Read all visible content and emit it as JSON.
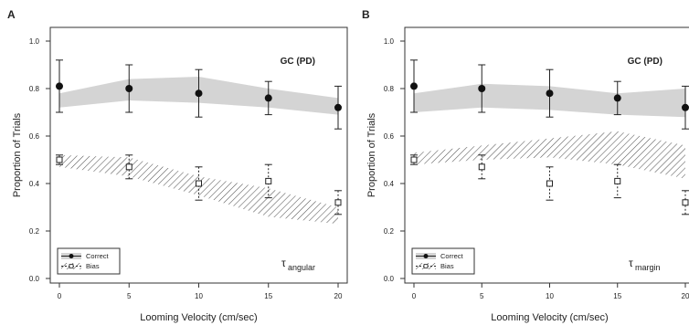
{
  "chart_data": [
    {
      "panel_letter": "A",
      "type": "scatter",
      "annotation": "GC (PD)",
      "tau_symbol": "τ",
      "tau_subscript": "angular",
      "xlabel": "Looming Velocity (cm/sec)",
      "ylabel": "Proportion of Trials",
      "x": [
        0,
        5,
        10,
        15,
        20
      ],
      "xticks": [
        "0",
        "5",
        "10",
        "15",
        "20"
      ],
      "xlim": [
        -1,
        20
      ],
      "yticks": [
        "0.0",
        "0.2",
        "0.4",
        "0.6",
        "0.8",
        "1.0"
      ],
      "ylim": [
        -0.04,
        1.08
      ],
      "legend": {
        "position": "bottom-left",
        "entries": [
          "Correct",
          "Bias"
        ]
      },
      "series": [
        {
          "name": "Correct",
          "marker": "filled-circle",
          "values": [
            0.81,
            0.8,
            0.78,
            0.76,
            0.72
          ],
          "err_low": [
            0.7,
            0.7,
            0.68,
            0.69,
            0.63
          ],
          "err_high": [
            0.92,
            0.9,
            0.88,
            0.83,
            0.81
          ],
          "model_band": {
            "lower": [
              0.72,
              0.75,
              0.74,
              0.72,
              0.69
            ],
            "upper": [
              0.78,
              0.84,
              0.85,
              0.8,
              0.76
            ]
          }
        },
        {
          "name": "Bias",
          "marker": "open-square",
          "values": [
            0.5,
            0.47,
            0.4,
            0.41,
            0.32
          ],
          "err_low": [
            0.48,
            0.42,
            0.33,
            0.34,
            0.27
          ],
          "err_high": [
            0.52,
            0.52,
            0.47,
            0.48,
            0.37
          ],
          "model_band": {
            "lower": [
              0.47,
              0.43,
              0.35,
              0.26,
              0.23
            ],
            "upper": [
              0.52,
              0.51,
              0.43,
              0.38,
              0.3
            ]
          }
        }
      ]
    },
    {
      "panel_letter": "B",
      "type": "scatter",
      "annotation": "GC (PD)",
      "tau_symbol": "τ",
      "tau_subscript": "margin",
      "xlabel": "Looming Velocity (cm/sec)",
      "ylabel": "Proportion of Trials",
      "x": [
        0,
        5,
        10,
        15,
        20
      ],
      "xticks": [
        "0",
        "5",
        "10",
        "15",
        "20"
      ],
      "xlim": [
        -1,
        20
      ],
      "yticks": [
        "0.0",
        "0.2",
        "0.4",
        "0.6",
        "0.8",
        "1.0"
      ],
      "ylim": [
        -0.04,
        1.08
      ],
      "legend": {
        "position": "bottom-left",
        "entries": [
          "Correct",
          "Bias"
        ]
      },
      "series": [
        {
          "name": "Correct",
          "marker": "filled-circle",
          "values": [
            0.81,
            0.8,
            0.78,
            0.76,
            0.72
          ],
          "err_low": [
            0.7,
            0.7,
            0.68,
            0.69,
            0.63
          ],
          "err_high": [
            0.92,
            0.9,
            0.88,
            0.83,
            0.81
          ],
          "model_band": {
            "lower": [
              0.7,
              0.72,
              0.71,
              0.69,
              0.68
            ],
            "upper": [
              0.78,
              0.82,
              0.81,
              0.78,
              0.8
            ]
          }
        },
        {
          "name": "Bias",
          "marker": "open-square",
          "values": [
            0.5,
            0.47,
            0.4,
            0.41,
            0.32
          ],
          "err_low": [
            0.48,
            0.42,
            0.33,
            0.34,
            0.27
          ],
          "err_high": [
            0.52,
            0.52,
            0.47,
            0.48,
            0.37
          ],
          "model_band": {
            "lower": [
              0.48,
              0.5,
              0.51,
              0.48,
              0.42
            ],
            "upper": [
              0.53,
              0.56,
              0.59,
              0.62,
              0.56
            ]
          }
        }
      ]
    }
  ]
}
